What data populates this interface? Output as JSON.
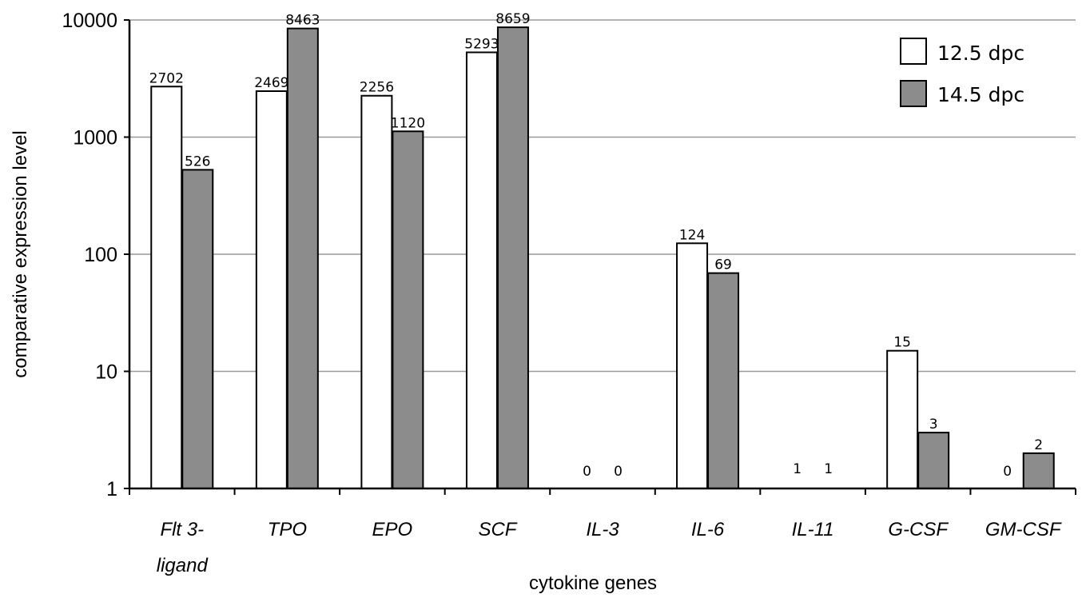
{
  "chart_data": {
    "type": "bar",
    "title": "",
    "xlabel": "cytokine genes",
    "ylabel": "comparative expression level",
    "yscale": "log",
    "ylim": [
      1,
      10000
    ],
    "yticks": [
      "1",
      "10",
      "100",
      "1000",
      "10000"
    ],
    "grid": true,
    "legend_position": "top-right",
    "categories": [
      [
        "Flt 3-",
        "ligand"
      ],
      [
        "TPO"
      ],
      [
        "EPO"
      ],
      [
        "SCF"
      ],
      [
        "IL-3"
      ],
      [
        "IL-6"
      ],
      [
        "IL-11"
      ],
      [
        "G-CSF"
      ],
      [
        "GM-CSF"
      ]
    ],
    "series": [
      {
        "name": "12.5 dpc",
        "color": "#ffffff",
        "values": [
          2702,
          2469,
          2256,
          5293,
          0,
          124,
          1,
          15,
          0
        ],
        "labels": [
          "2702",
          "2469",
          "2256",
          "5293",
          "0",
          "124",
          "1",
          "15",
          "0"
        ]
      },
      {
        "name": "14.5 dpc",
        "color": "#8c8c8c",
        "values": [
          526,
          8463,
          1120,
          8659,
          0,
          69,
          1,
          3,
          2
        ],
        "labels": [
          "526",
          "8463",
          "1120",
          "8659",
          "0",
          "69",
          "1",
          "3",
          "2"
        ]
      }
    ]
  }
}
